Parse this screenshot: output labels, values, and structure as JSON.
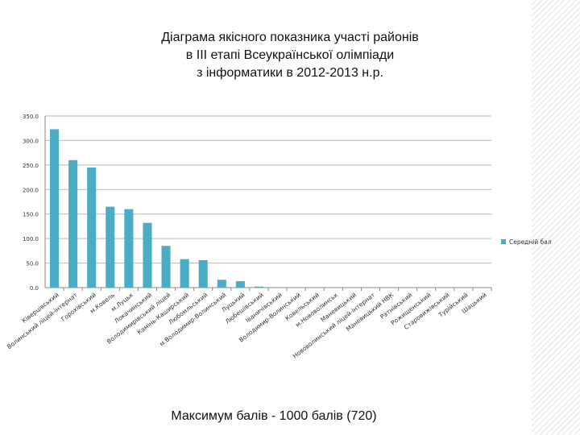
{
  "slide": {
    "title_lines": [
      "Діаграма якісного показника участі районів",
      "в ІІІ етапі Всеукраїнської олімпіади",
      "з інформатики в 2012-2013 н.р."
    ],
    "footer": "Максимум балів -  1000 балів (720)"
  },
  "chart_data": {
    "type": "bar",
    "title": "Діаграма якісного показника участі районів в ІІІ етапі Всеукраїнської олімпіади з інформатики в 2012-2013 н.р.",
    "xlabel": "",
    "ylabel": "",
    "ylim": [
      0,
      350
    ],
    "yticks": [
      "0.0",
      "50.0",
      "100.0",
      "150.0",
      "200.0",
      "250.0",
      "300.0",
      "350.0"
    ],
    "grid": true,
    "legend_position": "right",
    "bar_color": "#4bacc6",
    "categories": [
      "Ківерцівський",
      "Волинський ліцей-інтернат",
      "Горохівський",
      "м.Ковель",
      "м.Луцьк",
      "Локачинський",
      "Володимирівський ліцей",
      "Камінь-Каширський",
      "Любомльський",
      "м.Володимир-Волинський",
      "Луцький",
      "Любешівський",
      "Іваничівський",
      "Володимир-Волинський",
      "Ковельський",
      "м.Нововолинськ",
      "Маневицький",
      "Нововолинський ліцей-інтернат",
      "Маневицький НВК",
      "Ратнівський",
      "Рожищенський",
      "Старовижівський",
      "Турійський",
      "Шацький"
    ],
    "series": [
      {
        "name": "Середній бал",
        "values": [
          323,
          260,
          245,
          165,
          160,
          132,
          85,
          58,
          56,
          16,
          13,
          2,
          0,
          0,
          0,
          0,
          0,
          0,
          0,
          0,
          0,
          0,
          0,
          0
        ]
      }
    ]
  }
}
